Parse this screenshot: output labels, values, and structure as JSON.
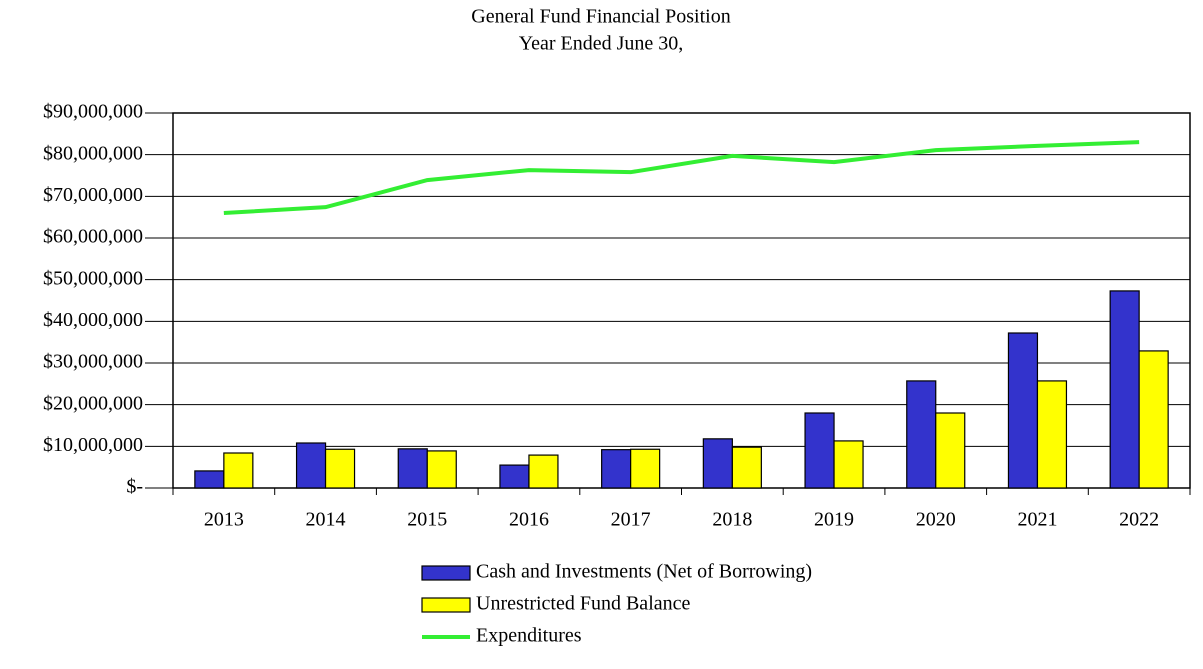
{
  "chart_data": {
    "type": "bar_line",
    "title": "General Fund Financial Position",
    "subtitle": "Year Ended June 30,",
    "categories": [
      "2013",
      "2014",
      "2015",
      "2016",
      "2017",
      "2018",
      "2019",
      "2020",
      "2021",
      "2022"
    ],
    "series": [
      {
        "name": "Cash and Investments (Net of Borrowing)",
        "type": "bar",
        "color": "#3333cc",
        "values": [
          4100000,
          10800000,
          9400000,
          5500000,
          9200000,
          11800000,
          18000000,
          25700000,
          37200000,
          47300000
        ]
      },
      {
        "name": "Unrestricted Fund Balance",
        "type": "bar",
        "color": "#ffff00",
        "values": [
          8400000,
          9300000,
          8900000,
          7900000,
          9300000,
          9800000,
          11300000,
          18000000,
          25700000,
          32900000
        ]
      },
      {
        "name": "Expenditures",
        "type": "line",
        "color": "#33ee33",
        "values": [
          66000000,
          67400000,
          73900000,
          76300000,
          75800000,
          79700000,
          78200000,
          81100000,
          82100000,
          83000000
        ]
      }
    ],
    "ylim": [
      0,
      90000000
    ],
    "yticks": [
      {
        "value": 0,
        "label": "$-"
      },
      {
        "value": 10000000,
        "label": "$10,000,000"
      },
      {
        "value": 20000000,
        "label": "$20,000,000"
      },
      {
        "value": 30000000,
        "label": "$30,000,000"
      },
      {
        "value": 40000000,
        "label": "$40,000,000"
      },
      {
        "value": 50000000,
        "label": "$50,000,000"
      },
      {
        "value": 60000000,
        "label": "$60,000,000"
      },
      {
        "value": 70000000,
        "label": "$70,000,000"
      },
      {
        "value": 80000000,
        "label": "$80,000,000"
      },
      {
        "value": 90000000,
        "label": "$90,000,000"
      }
    ],
    "grid": true
  }
}
